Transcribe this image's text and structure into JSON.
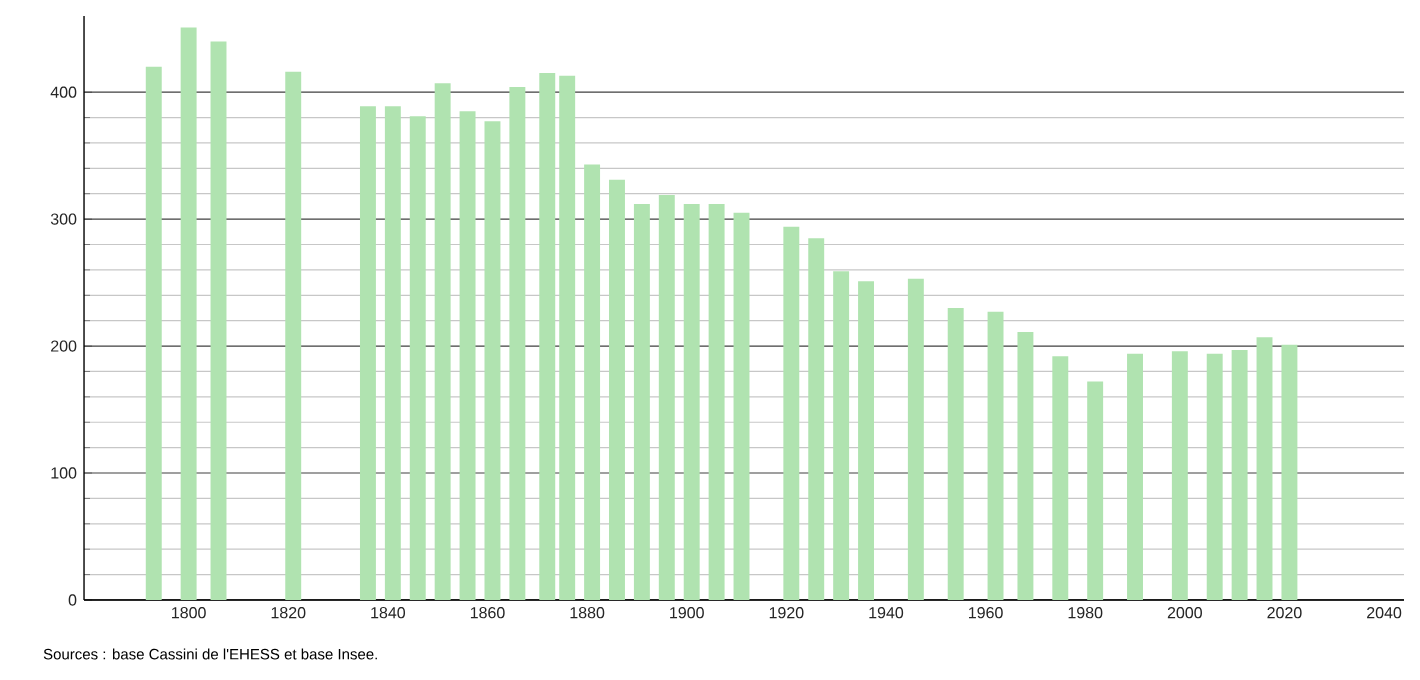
{
  "chart_data": {
    "type": "bar",
    "x": [
      1793,
      1800,
      1806,
      1821,
      1836,
      1841,
      1846,
      1851,
      1856,
      1861,
      1866,
      1872,
      1876,
      1881,
      1886,
      1891,
      1896,
      1901,
      1906,
      1911,
      1921,
      1926,
      1931,
      1936,
      1946,
      1954,
      1962,
      1968,
      1975,
      1982,
      1990,
      1999,
      2006,
      2011,
      2016,
      2021
    ],
    "values": [
      420,
      451,
      440,
      416,
      389,
      389,
      381,
      407,
      385,
      377,
      404,
      415,
      413,
      343,
      331,
      312,
      319,
      312,
      312,
      305,
      294,
      285,
      259,
      251,
      253,
      230,
      227,
      211,
      192,
      172,
      194,
      196,
      194,
      197,
      207,
      201
    ],
    "color": "#b0e3b0",
    "xlim": [
      1779,
      2044
    ],
    "xticks": [
      1800,
      1820,
      1840,
      1860,
      1880,
      1900,
      1920,
      1940,
      1960,
      1980,
      2000,
      2020,
      2040
    ],
    "ylim": [
      0,
      460
    ],
    "yticks": [
      0,
      100,
      200,
      300,
      400
    ],
    "grid": "y",
    "annotations": [
      "Sources : base Cassini de l'EHESS et base Insee."
    ]
  }
}
